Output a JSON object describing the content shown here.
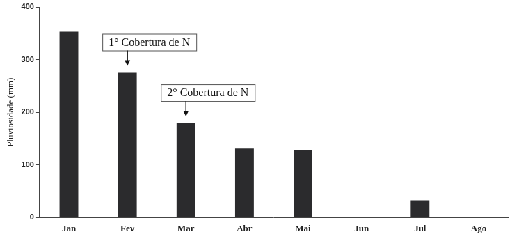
{
  "chart_data": {
    "type": "bar",
    "y_label": "Pluviosidade (mm)",
    "categories": [
      "Jan",
      "Fev",
      "Mar",
      "Abr",
      "Mai",
      "Jun",
      "Jul",
      "Ago"
    ],
    "values": [
      353,
      275,
      179,
      131,
      128,
      1,
      33,
      0
    ],
    "color": "#2b2b2d",
    "ylim": [
      0,
      400
    ],
    "yticks": [
      0,
      100,
      200,
      300,
      400
    ],
    "grid": false,
    "annotations": [
      {
        "text": "1° Cobertura de N",
        "x": "Fev"
      },
      {
        "text": "2° Cobertura de N",
        "x": "Mar"
      }
    ]
  }
}
